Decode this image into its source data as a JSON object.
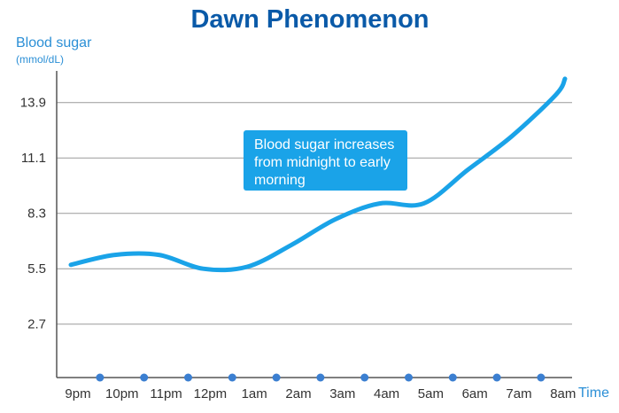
{
  "chart_data": {
    "type": "line",
    "title": "Dawn Phenomenon",
    "ylabel": "Blood sugar",
    "yunit": "(mmol/dL)",
    "xlabel": "Time",
    "categories": [
      "9pm",
      "10pm",
      "11pm",
      "12pm",
      "1am",
      "2am",
      "3am",
      "4am",
      "5am",
      "6am",
      "7am",
      "8am"
    ],
    "yticks": [
      "2.7",
      "5.5",
      "8.3",
      "11.1",
      "13.9"
    ],
    "ylim": [
      0,
      15.5
    ],
    "grid": true,
    "series": [
      {
        "x": [
          "9pm",
          "10pm",
          "11pm",
          "12pm",
          "1am",
          "2am",
          "3am",
          "4am",
          "5am",
          "6am",
          "7am",
          "8am"
        ],
        "values": [
          5.7,
          6.2,
          6.2,
          5.5,
          5.6,
          6.7,
          8.0,
          8.8,
          8.8,
          10.5,
          12.2,
          14.3
        ],
        "end_value": 15.1,
        "color": "#1aa3e8"
      }
    ],
    "annotations": [
      {
        "text": "Blood sugar increases from midnight to early morning",
        "color": "#1aa3e8"
      }
    ],
    "colors": {
      "title": "#0a5aa8",
      "text": "#333333",
      "axis_label": "#2b8fd6",
      "grid": "#9a9a9a",
      "axis": "#555555",
      "dots": "#3b7fd1"
    }
  }
}
